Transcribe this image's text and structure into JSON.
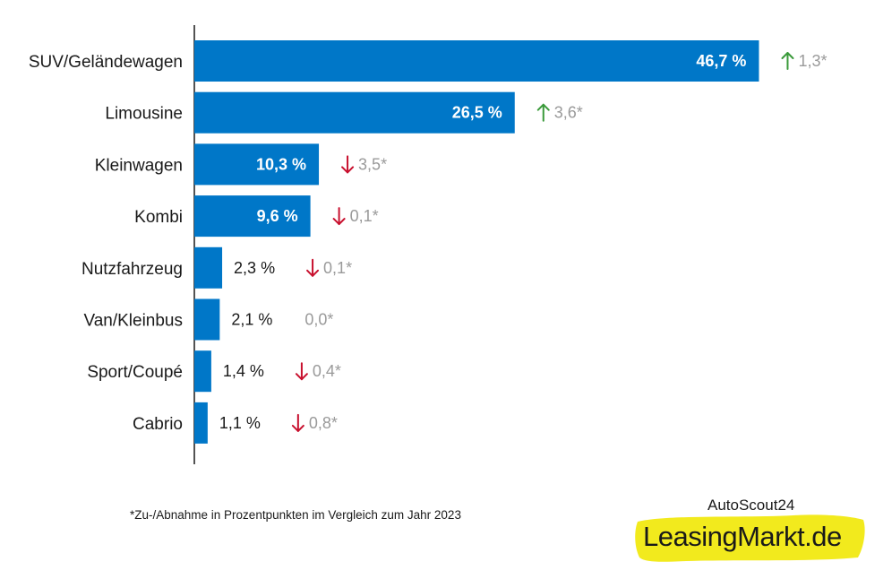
{
  "chart_data": {
    "type": "bar",
    "orientation": "horizontal",
    "title": "",
    "xlabel": "",
    "ylabel": "",
    "xlim": [
      0,
      50
    ],
    "grid": false,
    "legend": "none",
    "categories": [
      "SUV/Geländewagen",
      "Limousine",
      "Kleinwagen",
      "Kombi",
      "Nutzfahrzeug",
      "Van/Kleinbus",
      "Sport/Coupé",
      "Cabrio"
    ],
    "values": [
      46.7,
      26.5,
      10.3,
      9.6,
      2.3,
      2.1,
      1.4,
      1.1
    ],
    "value_labels": [
      "46,7 %",
      "26,5 %",
      "10,3 %",
      "9,6 %",
      "2,3 %",
      "2,1 %",
      "1,4 %",
      "1,1 %"
    ],
    "changes": [
      1.3,
      3.6,
      -3.5,
      -0.1,
      -0.1,
      0.0,
      -0.4,
      -0.8
    ],
    "change_labels": [
      "1,3*",
      "3,6*",
      "3,5*",
      "0,1*",
      "0,1*",
      "0,0*",
      "0,4*",
      "0,8*"
    ],
    "change_direction": [
      "up",
      "up",
      "down",
      "down",
      "down",
      "none",
      "down",
      "down"
    ],
    "bar_color": "#0077c8",
    "up_color": "#3a9a3a",
    "down_color": "#c8102e",
    "change_text_color": "#9a9a9a"
  },
  "footnote": "*Zu-/Abnahme in Prozentpunkten im Vergleich zum Jahr 2023",
  "brand": {
    "parent": "AutoScout24",
    "name": "LeasingMarkt.de",
    "highlight_color": "#f2ea1d"
  }
}
